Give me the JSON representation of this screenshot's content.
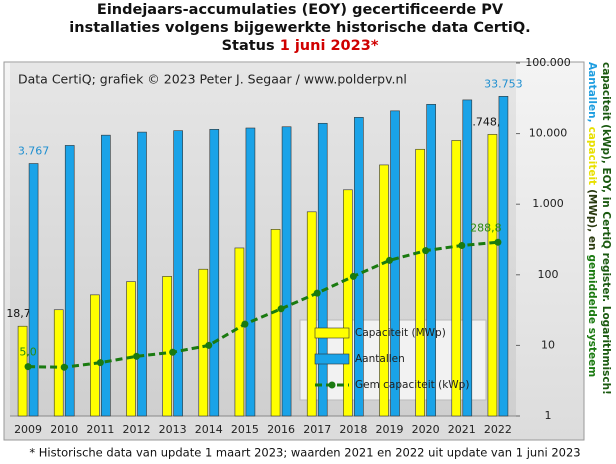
{
  "chart_data": {
    "type": "bar_line",
    "title_lines": [
      "Eindejaars-accumulaties (EOY) gecertificeerde PV",
      "installaties volgens bijgewerkte historische data CertiQ."
    ],
    "status_label": "Status",
    "status_date": "1 juni 2023*",
    "annotation": "Data CertiQ; grafiek © 2023 Peter J. Segaar / www.polderpv.nl",
    "footnote": "* Historische data van update 1 maart 2023; waarden 2021 en 2022 uit update van 1 juni 2023",
    "ylabel_parts": [
      {
        "text": "Aantallen,",
        "color": "#1f9ee0"
      },
      {
        "text": "capaciteit",
        "color": "#e8e000"
      },
      {
        "text": "(MWp), en",
        "color": "#2a3a10"
      },
      {
        "text": "gemiddelde systeem",
        "color": "#1a7a10"
      },
      {
        "text": "capaciteit (kWp), EOY, in CertiQ register. Logarithmisch!",
        "color": "#1a5a10"
      }
    ],
    "categories": [
      "2009",
      "2010",
      "2011",
      "2012",
      "2013",
      "2014",
      "2015",
      "2016",
      "2017",
      "2018",
      "2019",
      "2020",
      "2021",
      "2022"
    ],
    "series": [
      {
        "name": "Capaciteit (MWp)",
        "color": "#ffff00",
        "kind": "bar",
        "values": [
          18.7,
          32,
          52,
          80,
          95,
          120,
          240,
          440,
          780,
          1600,
          3600,
          6000,
          8000,
          9748.4
        ],
        "value_labels": [
          "18,7",
          null,
          null,
          null,
          null,
          null,
          null,
          null,
          null,
          null,
          null,
          null,
          null,
          "9.748,4"
        ],
        "label_color": "#111"
      },
      {
        "name": "Aantallen",
        "color": "#1aa3e8",
        "kind": "bar",
        "values": [
          3767,
          6800,
          9500,
          10500,
          11000,
          11500,
          12000,
          12500,
          14000,
          17000,
          21000,
          26000,
          30000,
          33753
        ],
        "value_labels": [
          "3.767",
          null,
          null,
          null,
          null,
          null,
          null,
          null,
          null,
          null,
          null,
          null,
          null,
          "33.753"
        ],
        "label_color": "#1f8fd0"
      },
      {
        "name": "Gem capaciteit (kWp)",
        "color": "#1a7a10",
        "kind": "line",
        "values": [
          5.0,
          4.9,
          5.7,
          7,
          8,
          10,
          20,
          33,
          55,
          95,
          160,
          220,
          260,
          288.8
        ],
        "value_labels": [
          "5,0",
          null,
          null,
          null,
          null,
          null,
          null,
          null,
          null,
          null,
          null,
          null,
          null,
          "288,8"
        ],
        "label_color": "#2a8a10"
      }
    ],
    "log_scale": true,
    "ylim": [
      1,
      100000
    ],
    "yticks": [
      1,
      10,
      100,
      {
        "value": 1000,
        "label": "1.000"
      },
      {
        "value": 10000,
        "label": "10.000"
      },
      {
        "value": 100000,
        "label": "100.000"
      }
    ],
    "grid": false,
    "legend": "lower right"
  }
}
